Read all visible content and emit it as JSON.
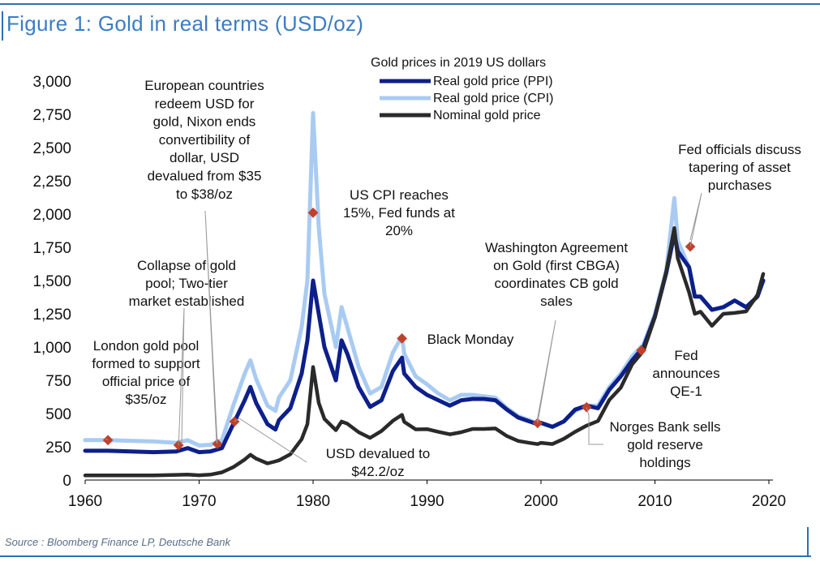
{
  "figure": {
    "title": "Figure 1: Gold in real terms (USD/oz)",
    "source": "Source : Bloomberg Finance LP, Deutsche Bank"
  },
  "colors": {
    "ppi": "#0d1f8a",
    "cpi": "#a9cbf2",
    "nominal": "#2a2a2a",
    "marker": "#c0402a",
    "frame": "#2e6fb6"
  },
  "chart_data": {
    "type": "line",
    "ylim": [
      0,
      3000
    ],
    "xlim": [
      1960,
      2020
    ],
    "yticks": [
      "0",
      "250",
      "500",
      "750",
      "1,000",
      "1,250",
      "1,500",
      "1,750",
      "2,000",
      "2,250",
      "2,500",
      "2,750",
      "3,000"
    ],
    "xticks": [
      "1960",
      "1970",
      "1980",
      "1990",
      "2000",
      "2010",
      "2020"
    ],
    "legend": {
      "title": "Gold prices in 2019 US dollars",
      "position": "top-center",
      "entries": [
        "Real gold price (PPI)",
        "Real gold price (CPI)",
        "Nominal gold price"
      ]
    },
    "series": [
      {
        "name": "Real gold price (PPI)",
        "x": [
          1960,
          1962,
          1964,
          1966,
          1968,
          1969,
          1970,
          1971,
          1972,
          1973,
          1974,
          1974.5,
          1975,
          1976,
          1976.7,
          1977,
          1978,
          1979,
          1979.5,
          1980,
          1980.5,
          1981,
          1982,
          1982.5,
          1983,
          1984,
          1985,
          1986,
          1987,
          1987.8,
          1988,
          1989,
          1990,
          1991,
          1992,
          1993,
          1994,
          1995,
          1996,
          1997,
          1998,
          1999,
          1999.7,
          2000,
          2001,
          2002,
          2003,
          2004,
          2005,
          2006,
          2007,
          2008,
          2009,
          2010,
          2011,
          2011.7,
          2012,
          2013,
          2013.5,
          2014,
          2015,
          2016,
          2017,
          2018,
          2019,
          2019.5
        ],
        "y": [
          220,
          220,
          215,
          210,
          215,
          240,
          210,
          215,
          240,
          420,
          600,
          700,
          580,
          420,
          380,
          450,
          540,
          800,
          1050,
          1500,
          1250,
          1000,
          750,
          1050,
          950,
          700,
          550,
          600,
          820,
          920,
          800,
          700,
          640,
          600,
          560,
          600,
          610,
          610,
          600,
          530,
          470,
          440,
          420,
          430,
          400,
          440,
          530,
          560,
          540,
          680,
          780,
          900,
          1000,
          1230,
          1560,
          1850,
          1720,
          1600,
          1380,
          1380,
          1280,
          1300,
          1350,
          1300,
          1380,
          1500
        ]
      },
      {
        "name": "Real gold price (CPI)",
        "x": [
          1960,
          1962,
          1964,
          1966,
          1968,
          1969,
          1970,
          1971,
          1972,
          1973,
          1974,
          1974.5,
          1975,
          1976,
          1976.7,
          1977,
          1978,
          1979,
          1979.5,
          1980,
          1980.5,
          1981,
          1982,
          1982.5,
          1983,
          1984,
          1985,
          1986,
          1987,
          1987.8,
          1988,
          1989,
          1990,
          1991,
          1992,
          1993,
          1994,
          1995,
          1996,
          1997,
          1998,
          1999,
          1999.7,
          2000,
          2001,
          2002,
          2003,
          2004,
          2005,
          2006,
          2007,
          2008,
          2009,
          2010,
          2011,
          2011.7,
          2012,
          2013,
          2013.5,
          2014,
          2015,
          2016,
          2017,
          2018,
          2019,
          2019.5
        ],
        "y": [
          300,
          300,
          295,
          290,
          280,
          300,
          260,
          265,
          300,
          560,
          800,
          900,
          760,
          560,
          520,
          620,
          750,
          1150,
          1500,
          2760,
          1900,
          1400,
          1000,
          1300,
          1150,
          850,
          650,
          700,
          960,
          1080,
          950,
          780,
          720,
          650,
          600,
          640,
          640,
          630,
          620,
          540,
          480,
          450,
          420,
          430,
          400,
          440,
          520,
          560,
          560,
          700,
          800,
          930,
          1020,
          1250,
          1580,
          2120,
          1800,
          1600,
          1380,
          1380,
          1280,
          1300,
          1350,
          1300,
          1380,
          1500
        ]
      },
      {
        "name": "Nominal gold price",
        "x": [
          1960,
          1962,
          1964,
          1966,
          1968,
          1969,
          1970,
          1971,
          1972,
          1973,
          1974,
          1974.5,
          1975,
          1976,
          1976.7,
          1977,
          1978,
          1979,
          1979.5,
          1980,
          1980.5,
          1981,
          1982,
          1982.5,
          1983,
          1984,
          1985,
          1986,
          1987,
          1987.8,
          1988,
          1989,
          1990,
          1991,
          1992,
          1993,
          1994,
          1995,
          1996,
          1997,
          1998,
          1999,
          1999.7,
          2000,
          2001,
          2002,
          2003,
          2004,
          2005,
          2006,
          2007,
          2008,
          2009,
          2010,
          2011,
          2011.7,
          2012,
          2013,
          2013.5,
          2014,
          2015,
          2016,
          2017,
          2018,
          2019,
          2019.5
        ],
        "y": [
          35,
          35,
          35,
          35,
          39,
          41,
          36,
          41,
          58,
          97,
          154,
          190,
          161,
          125,
          140,
          148,
          193,
          307,
          420,
          850,
          580,
          460,
          375,
          440,
          424,
          360,
          317,
          368,
          446,
          490,
          437,
          381,
          383,
          362,
          344,
          360,
          384,
          384,
          388,
          331,
          294,
          279,
          270,
          280,
          271,
          310,
          363,
          409,
          444,
          603,
          695,
          871,
          972,
          1224,
          1571,
          1895,
          1669,
          1411,
          1250,
          1266,
          1160,
          1250,
          1257,
          1268,
          1392,
          1550
        ]
      }
    ],
    "annotations": [
      {
        "x": 1962,
        "y": 300,
        "label": "London gold pool formed to support official price of $35/oz"
      },
      {
        "x": 1968.2,
        "y": 262,
        "label": "Collapse of gold pool; Two-tier market established"
      },
      {
        "x": 1971.6,
        "y": 272,
        "label": "European countries redeem USD for gold, Nixon ends convertibility of dollar, USD devalued from $35 to $38/oz"
      },
      {
        "x": 1973.1,
        "y": 440,
        "label": "USD devalued to $42.2/oz"
      },
      {
        "x": 1980.0,
        "y": 2010,
        "label": "US CPI reaches 15%, Fed funds at 20%"
      },
      {
        "x": 1987.8,
        "y": 1065,
        "label": "Black Monday"
      },
      {
        "x": 1999.7,
        "y": 428,
        "label": "Washington Agreement on Gold (first CBGA) coordinates CB gold sales"
      },
      {
        "x": 2004.0,
        "y": 548,
        "label": "Norges Bank sells gold reserve holdings"
      },
      {
        "x": 2008.8,
        "y": 975,
        "label": "Fed announces QE-1"
      },
      {
        "x": 2013.1,
        "y": 1755,
        "label": "Fed officials discuss tapering of asset purchases"
      }
    ]
  }
}
